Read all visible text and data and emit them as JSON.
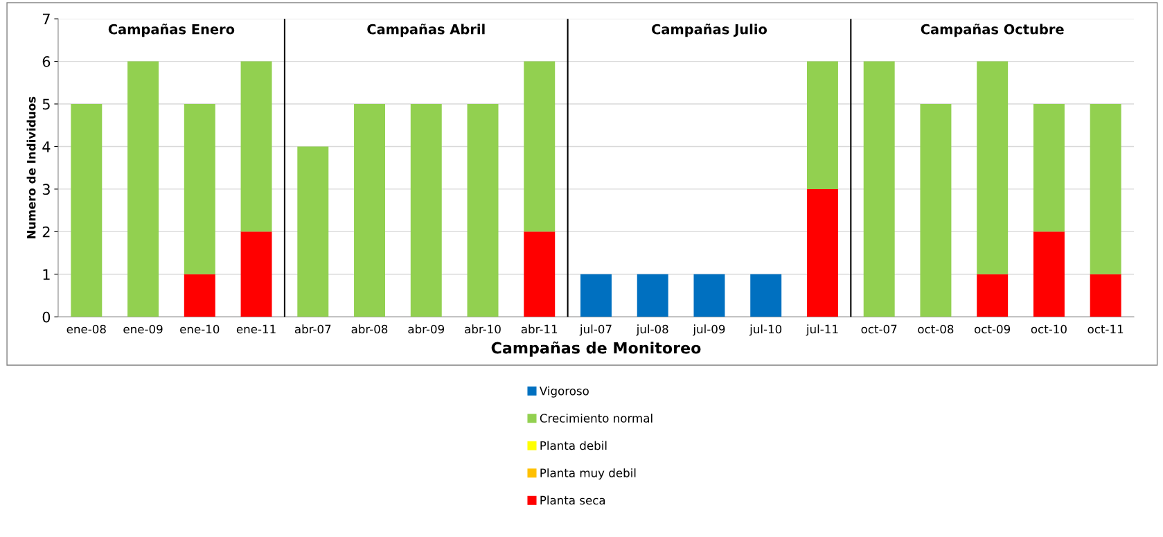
{
  "chart_data": {
    "type": "bar",
    "stacked": true,
    "xlabel": "Campañas de Monitoreo",
    "ylabel": "Numero de Individuos",
    "categories": [
      "ene-08",
      "ene-09",
      "ene-10",
      "ene-11",
      "abr-07",
      "abr-08",
      "abr-09",
      "abr-10",
      "abr-11",
      "jul-07",
      "jul-08",
      "jul-09",
      "jul-10",
      "jul-11",
      "oct-07",
      "oct-08",
      "oct-09",
      "oct-10",
      "oct-11"
    ],
    "series": [
      {
        "name": "Planta seca",
        "color": "#ff0000",
        "values": [
          0,
          0,
          1,
          2,
          0,
          0,
          0,
          0,
          2,
          0,
          0,
          0,
          0,
          3,
          0,
          0,
          1,
          2,
          1
        ]
      },
      {
        "name": "Planta muy debil",
        "color": "#ffc000",
        "values": [
          0,
          0,
          0,
          0,
          0,
          0,
          0,
          0,
          0,
          0,
          0,
          0,
          0,
          0,
          0,
          0,
          0,
          0,
          0
        ]
      },
      {
        "name": "Planta debil",
        "color": "#ffff00",
        "values": [
          0,
          0,
          0,
          0,
          0,
          0,
          0,
          0,
          0,
          0,
          0,
          0,
          0,
          0,
          0,
          0,
          0,
          0,
          0
        ]
      },
      {
        "name": "Crecimiento normal",
        "color": "#92d050",
        "values": [
          5,
          6,
          4,
          4,
          4,
          5,
          5,
          5,
          4,
          0,
          0,
          0,
          0,
          3,
          6,
          5,
          5,
          3,
          4
        ]
      },
      {
        "name": "Vigoroso",
        "color": "#0070c0",
        "values": [
          0,
          0,
          0,
          0,
          0,
          0,
          0,
          0,
          0,
          1,
          1,
          1,
          1,
          0,
          0,
          0,
          0,
          0,
          0
        ]
      }
    ],
    "ylim": [
      0,
      7
    ],
    "yticks": [
      0,
      1,
      2,
      3,
      4,
      5,
      6,
      7
    ],
    "grid": "y",
    "legend": "bottom",
    "annotations": [
      "Campañas Enero",
      "Campañas Abril",
      "Campañas Julio",
      "Campañas Octubre"
    ]
  }
}
